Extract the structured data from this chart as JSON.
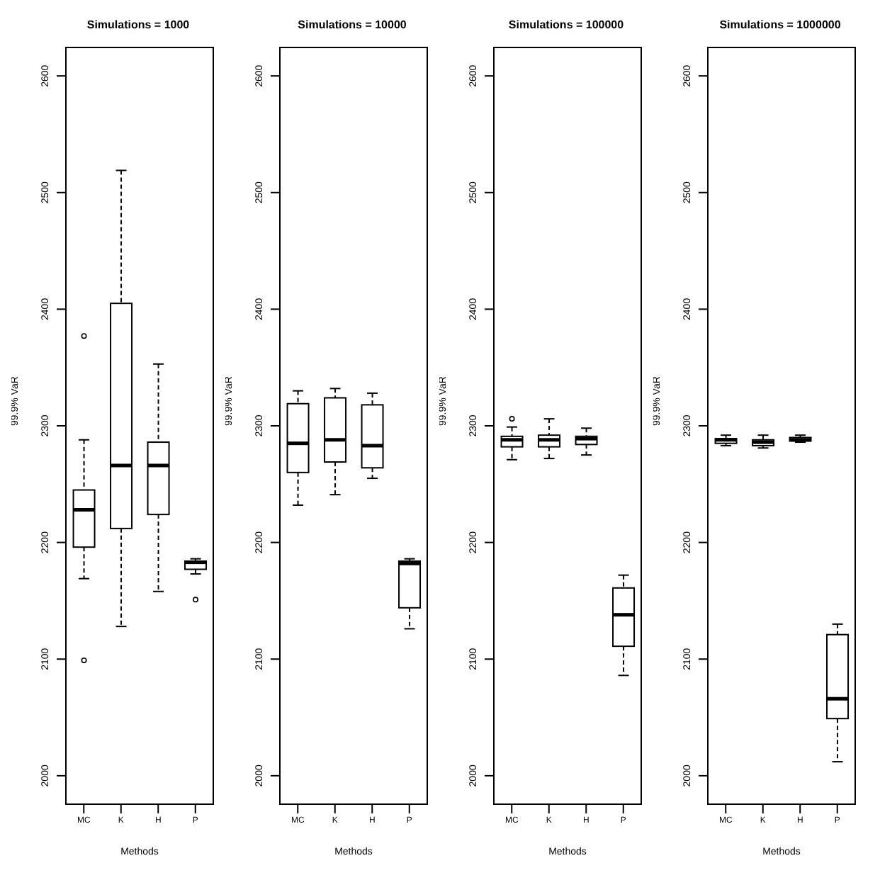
{
  "chart_data": [
    {
      "type": "box",
      "title": "Simulations = 1000",
      "xlabel": "Methods",
      "ylabel": "99.9% VaR",
      "categories": [
        "MC",
        "K",
        "H",
        "P"
      ],
      "ylim": [
        1975,
        2625
      ],
      "yticks": [
        2000,
        2100,
        2200,
        2300,
        2400,
        2500,
        2600
      ],
      "boxes": [
        {
          "low": 2169,
          "q1": 2196,
          "median": 2228,
          "q3": 2245,
          "high": 2288,
          "outliers": [
            2377,
            2099
          ]
        },
        {
          "low": 2128,
          "q1": 2212,
          "median": 2266,
          "q3": 2405,
          "high": 2519
        },
        {
          "low": 2158,
          "q1": 2224,
          "median": 2266,
          "q3": 2286,
          "high": 2353
        },
        {
          "low": 2173,
          "q1": 2177,
          "median": 2183,
          "q3": 2184,
          "high": 2186,
          "outliers": [
            2151
          ]
        }
      ]
    },
    {
      "type": "box",
      "title": "Simulations = 10000",
      "xlabel": "Methods",
      "ylabel": "99.9% VaR",
      "categories": [
        "MC",
        "K",
        "H",
        "P"
      ],
      "ylim": [
        1975,
        2625
      ],
      "yticks": [
        2000,
        2100,
        2200,
        2300,
        2400,
        2500,
        2600
      ],
      "boxes": [
        {
          "low": 2232,
          "q1": 2260,
          "median": 2285,
          "q3": 2319,
          "high": 2330
        },
        {
          "low": 2241,
          "q1": 2269,
          "median": 2288,
          "q3": 2324,
          "high": 2332
        },
        {
          "low": 2255,
          "q1": 2264,
          "median": 2283,
          "q3": 2318,
          "high": 2328
        },
        {
          "low": 2126,
          "q1": 2144,
          "median": 2182,
          "q3": 2184,
          "high": 2186
        }
      ]
    },
    {
      "type": "box",
      "title": "Simulations = 100000",
      "xlabel": "Methods",
      "ylabel": "99.9% VaR",
      "categories": [
        "MC",
        "K",
        "H",
        "P"
      ],
      "ylim": [
        1975,
        2625
      ],
      "yticks": [
        2000,
        2100,
        2200,
        2300,
        2400,
        2500,
        2600
      ],
      "boxes": [
        {
          "low": 2271,
          "q1": 2282,
          "median": 2288,
          "q3": 2291,
          "high": 2299,
          "outliers": [
            2306
          ]
        },
        {
          "low": 2272,
          "q1": 2282,
          "median": 2288,
          "q3": 2292,
          "high": 2306
        },
        {
          "low": 2275,
          "q1": 2284,
          "median": 2289,
          "q3": 2291,
          "high": 2298
        },
        {
          "low": 2086,
          "q1": 2111,
          "median": 2138,
          "q3": 2161,
          "high": 2172
        }
      ]
    },
    {
      "type": "box",
      "title": "Simulations = 1000000",
      "xlabel": "Methods",
      "ylabel": "99.9% VaR",
      "categories": [
        "MC",
        "K",
        "H",
        "P"
      ],
      "ylim": [
        1975,
        2625
      ],
      "yticks": [
        2000,
        2100,
        2200,
        2300,
        2400,
        2500,
        2600
      ],
      "boxes": [
        {
          "low": 2283,
          "q1": 2285,
          "median": 2288,
          "q3": 2289,
          "high": 2292
        },
        {
          "low": 2281,
          "q1": 2283,
          "median": 2286,
          "q3": 2288,
          "high": 2292
        },
        {
          "low": 2286,
          "q1": 2287,
          "median": 2288,
          "q3": 2290,
          "high": 2292
        },
        {
          "low": 2012,
          "q1": 2049,
          "median": 2066,
          "q3": 2121,
          "high": 2130
        }
      ]
    }
  ]
}
